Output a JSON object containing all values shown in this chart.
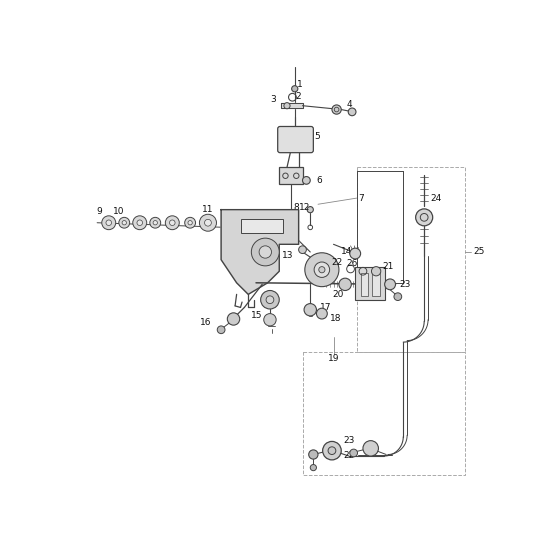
{
  "background": "#ffffff",
  "line_color": "#444444",
  "label_color": "#111111",
  "label_fontsize": 6.5,
  "figsize": [
    5.6,
    5.6
  ],
  "dpi": 100
}
